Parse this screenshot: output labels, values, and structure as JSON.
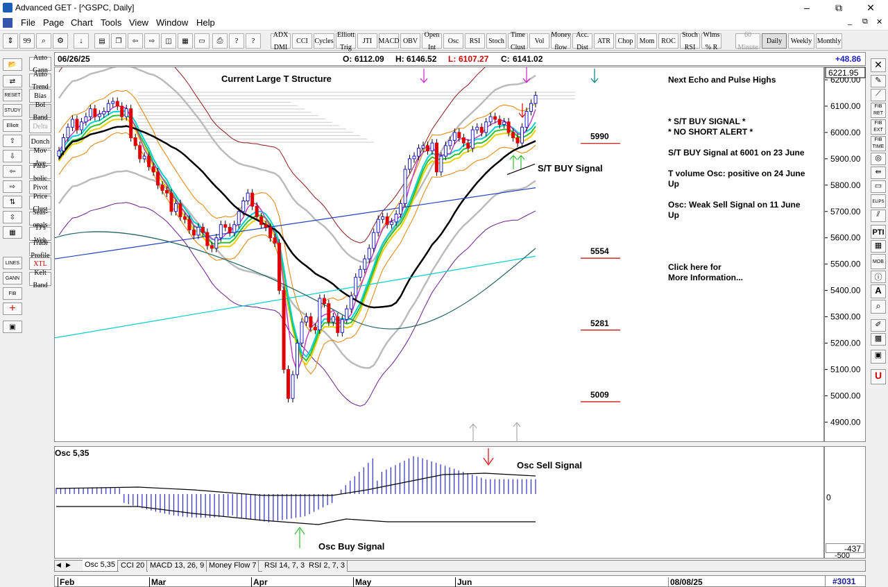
{
  "window": {
    "title": "Advanced GET - [^GSPC, Daily]",
    "min": "–",
    "restore": "⧉",
    "close": "✕",
    "child_min": "_",
    "child_restore": "⧉",
    "child_close": "✕"
  },
  "menu": [
    "File",
    "Page",
    "Chart",
    "Tools",
    "View",
    "Window",
    "Help"
  ],
  "toolbar": {
    "indicators": [
      {
        "l1": "ADX",
        "l2": "DMI"
      },
      {
        "l1": "CCI",
        "l2": ""
      },
      {
        "l1": "Cycles",
        "l2": ""
      },
      {
        "l1": "Elliott",
        "l2": "Trig"
      },
      {
        "l1": "JTI",
        "l2": ""
      },
      {
        "l1": "MACD",
        "l2": ""
      },
      {
        "l1": "OBV",
        "l2": ""
      },
      {
        "l1": "Open",
        "l2": "Int"
      },
      {
        "l1": "Osc",
        "l2": ""
      },
      {
        "l1": "RSI",
        "l2": ""
      },
      {
        "l1": "Stoch",
        "l2": ""
      },
      {
        "l1": "Time",
        "l2": "Clust"
      },
      {
        "l1": "Vol",
        "l2": ""
      },
      {
        "l1": "Money",
        "l2": "flow"
      },
      {
        "l1": "Acc.",
        "l2": "Dist"
      },
      {
        "l1": "ATR",
        "l2": ""
      },
      {
        "l1": "Chop",
        "l2": ""
      },
      {
        "l1": "Mom",
        "l2": ""
      },
      {
        "l1": "ROC",
        "l2": ""
      },
      {
        "l1": "Stoch",
        "l2": "RSI"
      },
      {
        "l1": "Wlms",
        "l2": "% R"
      }
    ],
    "periods": [
      {
        "l1": "60",
        "l2": "Minute"
      },
      {
        "l1": "Daily",
        "l2": ""
      },
      {
        "l1": "Weekly",
        "l2": ""
      },
      {
        "l1": "Monthly",
        "l2": ""
      }
    ]
  },
  "studies": [
    {
      "l1": "Auto",
      "l2": "Gann"
    },
    {
      "l1": "Auto",
      "l2": "Trend"
    },
    {
      "l1": "Bias",
      "l2": ""
    },
    {
      "l1": "Bol",
      "l2": "Band"
    },
    {
      "l1": "Delta",
      "l2": ""
    },
    {
      "l1": "Donch",
      "l2": ""
    },
    {
      "l1": "Mov",
      "l2": "Ave"
    },
    {
      "l1": "Para-",
      "l2": "bolic"
    },
    {
      "l1": "Pivot",
      "l2": ""
    },
    {
      "l1": "Price",
      "l2": "Clust"
    },
    {
      "l1": "Seas-",
      "l2": "onals"
    },
    {
      "l1": "TJ's",
      "l2": "Web"
    },
    {
      "l1": "Trade",
      "l2": "Profile"
    },
    {
      "l1": "XTL",
      "l2": ""
    },
    {
      "l1": "Kelt",
      "l2": "Band"
    }
  ],
  "left_tools": [
    "STUDY",
    "RESET",
    "Elliott",
    "LINES",
    "GANN",
    "FIB"
  ],
  "right_tools": [
    "FIB RET",
    "FIB EXT",
    "FIB TIME",
    "ELIPS",
    "PTI",
    "MOB",
    "A"
  ],
  "info": {
    "date": "06/26/25",
    "open_label": "O:",
    "open": "6112.09",
    "high_label": "H:",
    "high": "6146.52",
    "low_label": "L:",
    "low": "6107.27",
    "close_label": "C:",
    "close": "6141.02",
    "change": "+48.86"
  },
  "chart": {
    "structure_label": "Current Large T Structure",
    "st_buy_label": "S/T BUY Signal",
    "levels": [
      {
        "value": "5990",
        "price": 5990
      },
      {
        "value": "5554",
        "price": 5554
      },
      {
        "value": "5281",
        "price": 5281
      },
      {
        "value": "5009",
        "price": 5009
      }
    ],
    "notes": {
      "title": "Next Echo and Pulse Highs",
      "buy": "* S/T BUY SIGNAL *",
      "alert": "* NO SHORT ALERT *",
      "buy_at": "S/T BUY Signal at 6001 on 23 June",
      "vol_line1": "T volume Osc: positive on 24 June",
      "vol_line2": "Up",
      "osc_line1": "Osc: Weak Sell Signal on 11 June",
      "osc_line2": "Up",
      "click1": "Click here for",
      "click2": "More Information..."
    },
    "current_price": "6221.95",
    "price_ticks": [
      "6200.00",
      "6100.00",
      "6000.00",
      "5900.00",
      "5800.00",
      "5700.00",
      "5600.00",
      "5500.00",
      "5400.00",
      "5300.00",
      "5200.00",
      "5100.00",
      "5000.00",
      "4900.00"
    ]
  },
  "osc": {
    "title": "Osc 5,35",
    "sell_label": "Osc Sell Signal",
    "buy_label": "Osc Buy Signal",
    "zero": "0",
    "low_value": "-437",
    "low_tick": "-500"
  },
  "tabs": [
    "Osc 5,35",
    "CCI 20",
    "MACD 13, 26, 9",
    "Money Flow 7",
    "RSI 14, 7, 3",
    "RSI 2, 7, 3"
  ],
  "dates": {
    "months": [
      "Feb",
      "Mar",
      "Apr",
      "May",
      "Jun"
    ],
    "future_date": "08/08/25",
    "bar_count": "#3031"
  },
  "colors": {
    "up": "#1e1ecc",
    "down": "#e00000",
    "ma_black": "#000000",
    "cyan": "#00d0d0",
    "green": "#30c030",
    "yellow": "#e8d000"
  }
}
